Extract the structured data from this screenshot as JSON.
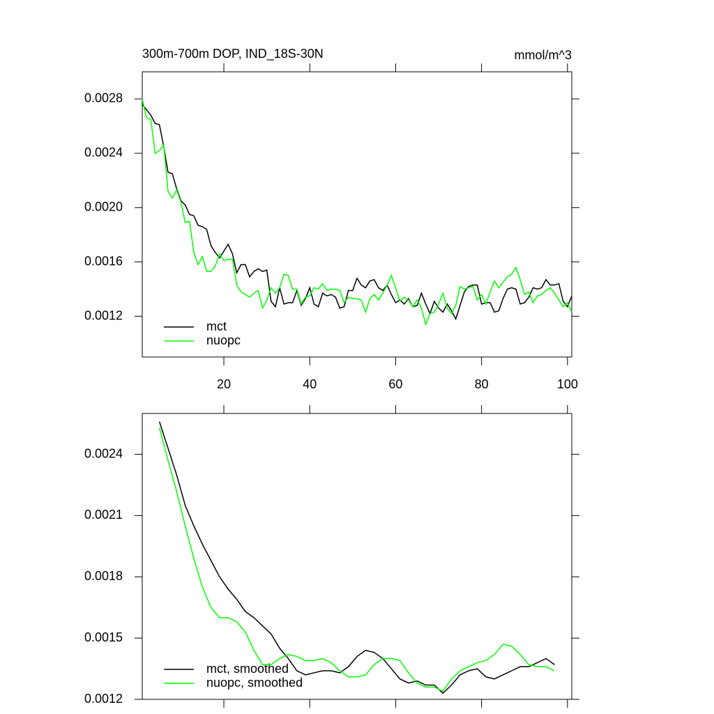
{
  "chart_data": [
    {
      "type": "line",
      "title": "300m-700m DOP, IND_18S-30N",
      "units": "mmol/m^3",
      "x": [
        1,
        2,
        3,
        4,
        5,
        6,
        7,
        8,
        9,
        10,
        11,
        12,
        13,
        14,
        15,
        16,
        17,
        18,
        19,
        20,
        21,
        22,
        23,
        24,
        25,
        26,
        27,
        28,
        29,
        30,
        31,
        32,
        33,
        34,
        35,
        36,
        37,
        38,
        39,
        40,
        41,
        42,
        43,
        44,
        45,
        46,
        47,
        48,
        49,
        50,
        51,
        52,
        53,
        54,
        55,
        56,
        57,
        58,
        59,
        60,
        61,
        62,
        63,
        64,
        65,
        66,
        67,
        68,
        69,
        70,
        71,
        72,
        73,
        74,
        75,
        76,
        77,
        78,
        79,
        80,
        81,
        82,
        83,
        84,
        85,
        86,
        87,
        88,
        89,
        90,
        91,
        92,
        93,
        94,
        95,
        96,
        97,
        98,
        99,
        100,
        101
      ],
      "series": [
        {
          "name": "mct",
          "color": "#000000",
          "values": [
            0.00276,
            0.00272,
            0.00268,
            0.00262,
            0.00261,
            0.00245,
            0.00226,
            0.00225,
            0.00214,
            0.00205,
            0.00202,
            0.00195,
            0.00194,
            0.00187,
            0.00186,
            0.00184,
            0.00172,
            0.00167,
            0.00163,
            0.00168,
            0.00173,
            0.00166,
            0.00152,
            0.00158,
            0.00158,
            0.00149,
            0.00153,
            0.00155,
            0.00153,
            0.00154,
            0.00131,
            0.00127,
            0.00141,
            0.00129,
            0.0013,
            0.0013,
            0.00139,
            0.00128,
            0.00133,
            0.00141,
            0.00129,
            0.00127,
            0.00137,
            0.00135,
            0.00136,
            0.00134,
            0.00126,
            0.00127,
            0.00139,
            0.00139,
            0.00148,
            0.00143,
            0.00141,
            0.00146,
            0.00147,
            0.00141,
            0.00139,
            0.00143,
            0.00136,
            0.0013,
            0.00132,
            0.00129,
            0.00133,
            0.00127,
            0.00128,
            0.00137,
            0.00129,
            0.00122,
            0.00131,
            0.00126,
            0.00123,
            0.00129,
            0.00124,
            0.00118,
            0.00128,
            0.00138,
            0.00142,
            0.00143,
            0.00143,
            0.00129,
            0.0013,
            0.0013,
            0.00123,
            0.00124,
            0.00133,
            0.0014,
            0.00141,
            0.0014,
            0.00129,
            0.0013,
            0.00134,
            0.00141,
            0.0014,
            0.00141,
            0.00147,
            0.00143,
            0.00143,
            0.00144,
            0.00131,
            0.00127,
            0.00135
          ]
        },
        {
          "name": "nuopc",
          "color": "#00ff00",
          "values": [
            0.0028,
            0.00266,
            0.00265,
            0.0024,
            0.00242,
            0.00246,
            0.00212,
            0.00207,
            0.00213,
            0.00204,
            0.00189,
            0.0019,
            0.00167,
            0.00158,
            0.00164,
            0.00153,
            0.00153,
            0.00157,
            0.00166,
            0.00161,
            0.00162,
            0.00162,
            0.00143,
            0.00138,
            0.00136,
            0.00134,
            0.00137,
            0.00139,
            0.00126,
            0.00132,
            0.00141,
            0.00137,
            0.00141,
            0.00151,
            0.0015,
            0.0014,
            0.0014,
            0.00129,
            0.00134,
            0.00135,
            0.00141,
            0.0014,
            0.00144,
            0.00139,
            0.0014,
            0.0014,
            0.00139,
            0.0013,
            0.00134,
            0.00133,
            0.00133,
            0.00132,
            0.00123,
            0.00133,
            0.00136,
            0.00132,
            0.00137,
            0.00143,
            0.0015,
            0.00141,
            0.00131,
            0.00134,
            0.00132,
            0.00127,
            0.00132,
            0.00126,
            0.00114,
            0.00122,
            0.00123,
            0.00129,
            0.00137,
            0.00126,
            0.00122,
            0.00128,
            0.00142,
            0.0014,
            0.00141,
            0.00142,
            0.00132,
            0.00136,
            0.00129,
            0.00138,
            0.00146,
            0.00141,
            0.00145,
            0.00149,
            0.00151,
            0.00156,
            0.00147,
            0.00136,
            0.00138,
            0.0013,
            0.00135,
            0.00136,
            0.00139,
            0.00141,
            0.00137,
            0.00132,
            0.00127,
            0.0013,
            0.00123
          ]
        }
      ],
      "xlim": [
        1,
        101
      ],
      "xticks": [
        20,
        40,
        60,
        80,
        100
      ],
      "ylim": [
        0.0009,
        0.003
      ],
      "yticks": [
        0.0012,
        0.0016,
        {
          "value": 0.002,
          "label": "0.0020"
        },
        0.0024,
        0.0028
      ],
      "legend": "lower left"
    },
    {
      "type": "line",
      "x": [
        5,
        7,
        9,
        11,
        13,
        15,
        17,
        19,
        21,
        23,
        25,
        27,
        29,
        31,
        33,
        35,
        37,
        39,
        41,
        43,
        45,
        47,
        49,
        51,
        53,
        55,
        57,
        59,
        61,
        63,
        65,
        67,
        69,
        71,
        73,
        75,
        77,
        79,
        81,
        83,
        85,
        87,
        89,
        91,
        93,
        95,
        97
      ],
      "series": [
        {
          "name": "mct, smoothed",
          "color": "#000000",
          "values": [
            0.00256,
            0.00243,
            0.0023,
            0.00215,
            0.00205,
            0.00196,
            0.00188,
            0.0018,
            0.00174,
            0.00169,
            0.00163,
            0.0016,
            0.00156,
            0.00152,
            0.00145,
            0.0014,
            0.00134,
            0.00132,
            0.00133,
            0.00134,
            0.00134,
            0.00133,
            0.00136,
            0.00141,
            0.00144,
            0.00143,
            0.0014,
            0.00135,
            0.0013,
            0.00128,
            0.00129,
            0.00127,
            0.00127,
            0.00123,
            0.00127,
            0.00132,
            0.00134,
            0.00135,
            0.00131,
            0.0013,
            0.00132,
            0.00134,
            0.00136,
            0.00136,
            0.00138,
            0.0014,
            0.00137
          ]
        },
        {
          "name": "nuopc, smoothed",
          "color": "#00ff00",
          "values": [
            0.00253,
            0.00237,
            0.00222,
            0.00205,
            0.00189,
            0.00175,
            0.00165,
            0.0016,
            0.0016,
            0.00158,
            0.00153,
            0.00144,
            0.00137,
            0.00137,
            0.0014,
            0.00142,
            0.00141,
            0.00139,
            0.00139,
            0.0014,
            0.00138,
            0.00134,
            0.00131,
            0.00131,
            0.00132,
            0.00137,
            0.0014,
            0.0014,
            0.00139,
            0.00133,
            0.00128,
            0.00126,
            0.00126,
            0.00124,
            0.0013,
            0.00134,
            0.00136,
            0.00138,
            0.00139,
            0.00142,
            0.00147,
            0.00146,
            0.00142,
            0.00137,
            0.00136,
            0.00136,
            0.00134
          ]
        }
      ],
      "xlim": [
        1,
        101
      ],
      "xticks": [
        20,
        40,
        60,
        80,
        100
      ],
      "xtick_labels": false,
      "ylim": [
        0.0012,
        0.0026
      ],
      "yticks": [
        0.0012,
        0.0015,
        0.0018,
        0.0021,
        0.0024
      ],
      "legend": "lower left"
    }
  ]
}
